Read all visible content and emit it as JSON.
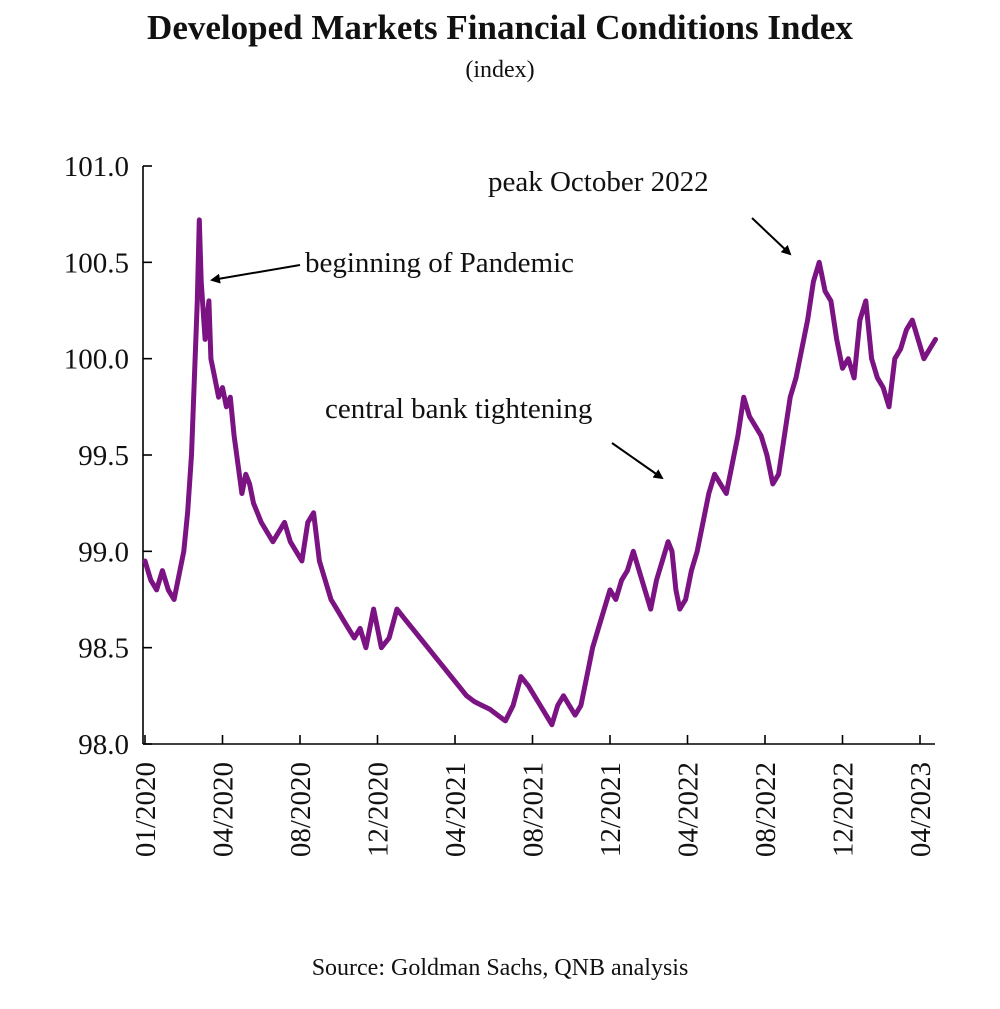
{
  "title": "Developed Markets Financial Conditions Index",
  "subtitle": "(index)",
  "source": "Source: Goldman Sachs, QNB analysis",
  "colors": {
    "line": "#7b1383",
    "axis": "#000000",
    "text": "#111111"
  },
  "chart_data": {
    "type": "line",
    "title": "Developed Markets Financial Conditions Index",
    "ylabel": "(index)",
    "xlabel": "",
    "ylim": [
      98.0,
      101.0
    ],
    "xlim_months": [
      0,
      40
    ],
    "grid": false,
    "y_ticks": [
      "98.0",
      "98.5",
      "99.0",
      "99.5",
      "100.0",
      "100.5",
      "101.0"
    ],
    "y_tick_values": [
      98.0,
      98.5,
      99.0,
      99.5,
      100.0,
      100.5,
      101.0
    ],
    "x_ticks": [
      "01/2020",
      "04/2020",
      "08/2020",
      "12/2020",
      "04/2021",
      "08/2021",
      "12/2021",
      "04/2022",
      "08/2022",
      "12/2022",
      "04/2023"
    ],
    "x_tick_months": [
      0,
      4,
      8,
      12,
      16,
      20,
      24,
      28,
      32,
      36,
      40
    ],
    "series": [
      {
        "name": "Developed Markets Financial Conditions Index",
        "x_months": [
          0,
          0.3,
          0.6,
          0.9,
          1.2,
          1.5,
          1.8,
          2.0,
          2.2,
          2.4,
          2.55,
          2.7,
          2.8,
          2.9,
          3.1,
          3.3,
          3.4,
          3.6,
          3.8,
          4.0,
          4.2,
          4.4,
          4.6,
          4.8,
          5.0,
          5.2,
          5.4,
          5.6,
          5.8,
          6.0,
          6.3,
          6.6,
          6.9,
          7.2,
          7.5,
          7.8,
          8.1,
          8.4,
          8.7,
          9.0,
          9.3,
          9.6,
          9.9,
          10.2,
          10.5,
          10.8,
          11.1,
          11.4,
          11.8,
          12.2,
          12.6,
          13.0,
          13.4,
          13.8,
          14.2,
          14.6,
          15.0,
          15.4,
          15.8,
          16.2,
          16.6,
          17.0,
          17.4,
          17.8,
          18.2,
          18.6,
          19.0,
          19.4,
          19.8,
          20.1,
          20.4,
          20.7,
          21.0,
          21.3,
          21.6,
          21.9,
          22.2,
          22.5,
          22.8,
          23.1,
          23.4,
          23.7,
          24.0,
          24.3,
          24.6,
          24.9,
          25.2,
          25.5,
          25.8,
          26.1,
          26.4,
          26.7,
          27.0,
          27.2,
          27.4,
          27.6,
          27.9,
          28.2,
          28.5,
          28.8,
          29.1,
          29.4,
          29.7,
          30.0,
          30.3,
          30.6,
          30.9,
          31.2,
          31.5,
          31.8,
          32.1,
          32.4,
          32.7,
          33.0,
          33.3,
          33.6,
          33.9,
          34.2,
          34.5,
          34.8,
          35.1,
          35.4,
          35.7,
          36.0,
          36.3,
          36.6,
          36.9,
          37.2,
          37.5,
          37.8,
          38.1,
          38.4,
          38.7,
          39.0,
          39.3,
          39.6,
          39.9,
          40.2,
          40.5,
          40.8
        ],
        "values": [
          98.95,
          98.85,
          98.8,
          98.9,
          98.8,
          98.75,
          98.9,
          99.0,
          99.2,
          99.5,
          99.9,
          100.3,
          100.72,
          100.4,
          100.1,
          100.3,
          100.0,
          99.9,
          99.8,
          99.85,
          99.75,
          99.8,
          99.6,
          99.45,
          99.3,
          99.4,
          99.35,
          99.25,
          99.2,
          99.15,
          99.1,
          99.05,
          99.1,
          99.15,
          99.05,
          99.0,
          98.95,
          99.15,
          99.2,
          98.95,
          98.85,
          98.75,
          98.7,
          98.65,
          98.6,
          98.55,
          98.6,
          98.5,
          98.7,
          98.5,
          98.55,
          98.7,
          98.65,
          98.6,
          98.55,
          98.5,
          98.45,
          98.4,
          98.35,
          98.3,
          98.25,
          98.22,
          98.2,
          98.18,
          98.15,
          98.12,
          98.2,
          98.35,
          98.3,
          98.25,
          98.2,
          98.15,
          98.1,
          98.2,
          98.25,
          98.2,
          98.15,
          98.2,
          98.35,
          98.5,
          98.6,
          98.7,
          98.8,
          98.75,
          98.85,
          98.9,
          99.0,
          98.9,
          98.8,
          98.7,
          98.85,
          98.95,
          99.05,
          99.0,
          98.8,
          98.7,
          98.75,
          98.9,
          99.0,
          99.15,
          99.3,
          99.4,
          99.35,
          99.3,
          99.45,
          99.6,
          99.8,
          99.7,
          99.65,
          99.6,
          99.5,
          99.35,
          99.4,
          99.6,
          99.8,
          99.9,
          100.05,
          100.2,
          100.4,
          100.5,
          100.35,
          100.3,
          100.1,
          99.95,
          100.0,
          99.9,
          100.2,
          100.3,
          100.0,
          99.9,
          99.85,
          99.75,
          100.0,
          100.05,
          100.15,
          100.2,
          100.1,
          100.0,
          100.05,
          100.1
        ]
      }
    ],
    "annotations": [
      {
        "text": "beginning  of Pandemic",
        "target_month": 3.6,
        "target_value": 100.4
      },
      {
        "text": "central bank tightening",
        "target_month": 26.2,
        "target_value": 99.45
      },
      {
        "text": "peak October 2022",
        "target_month": 33.3,
        "target_value": 100.55
      }
    ]
  }
}
